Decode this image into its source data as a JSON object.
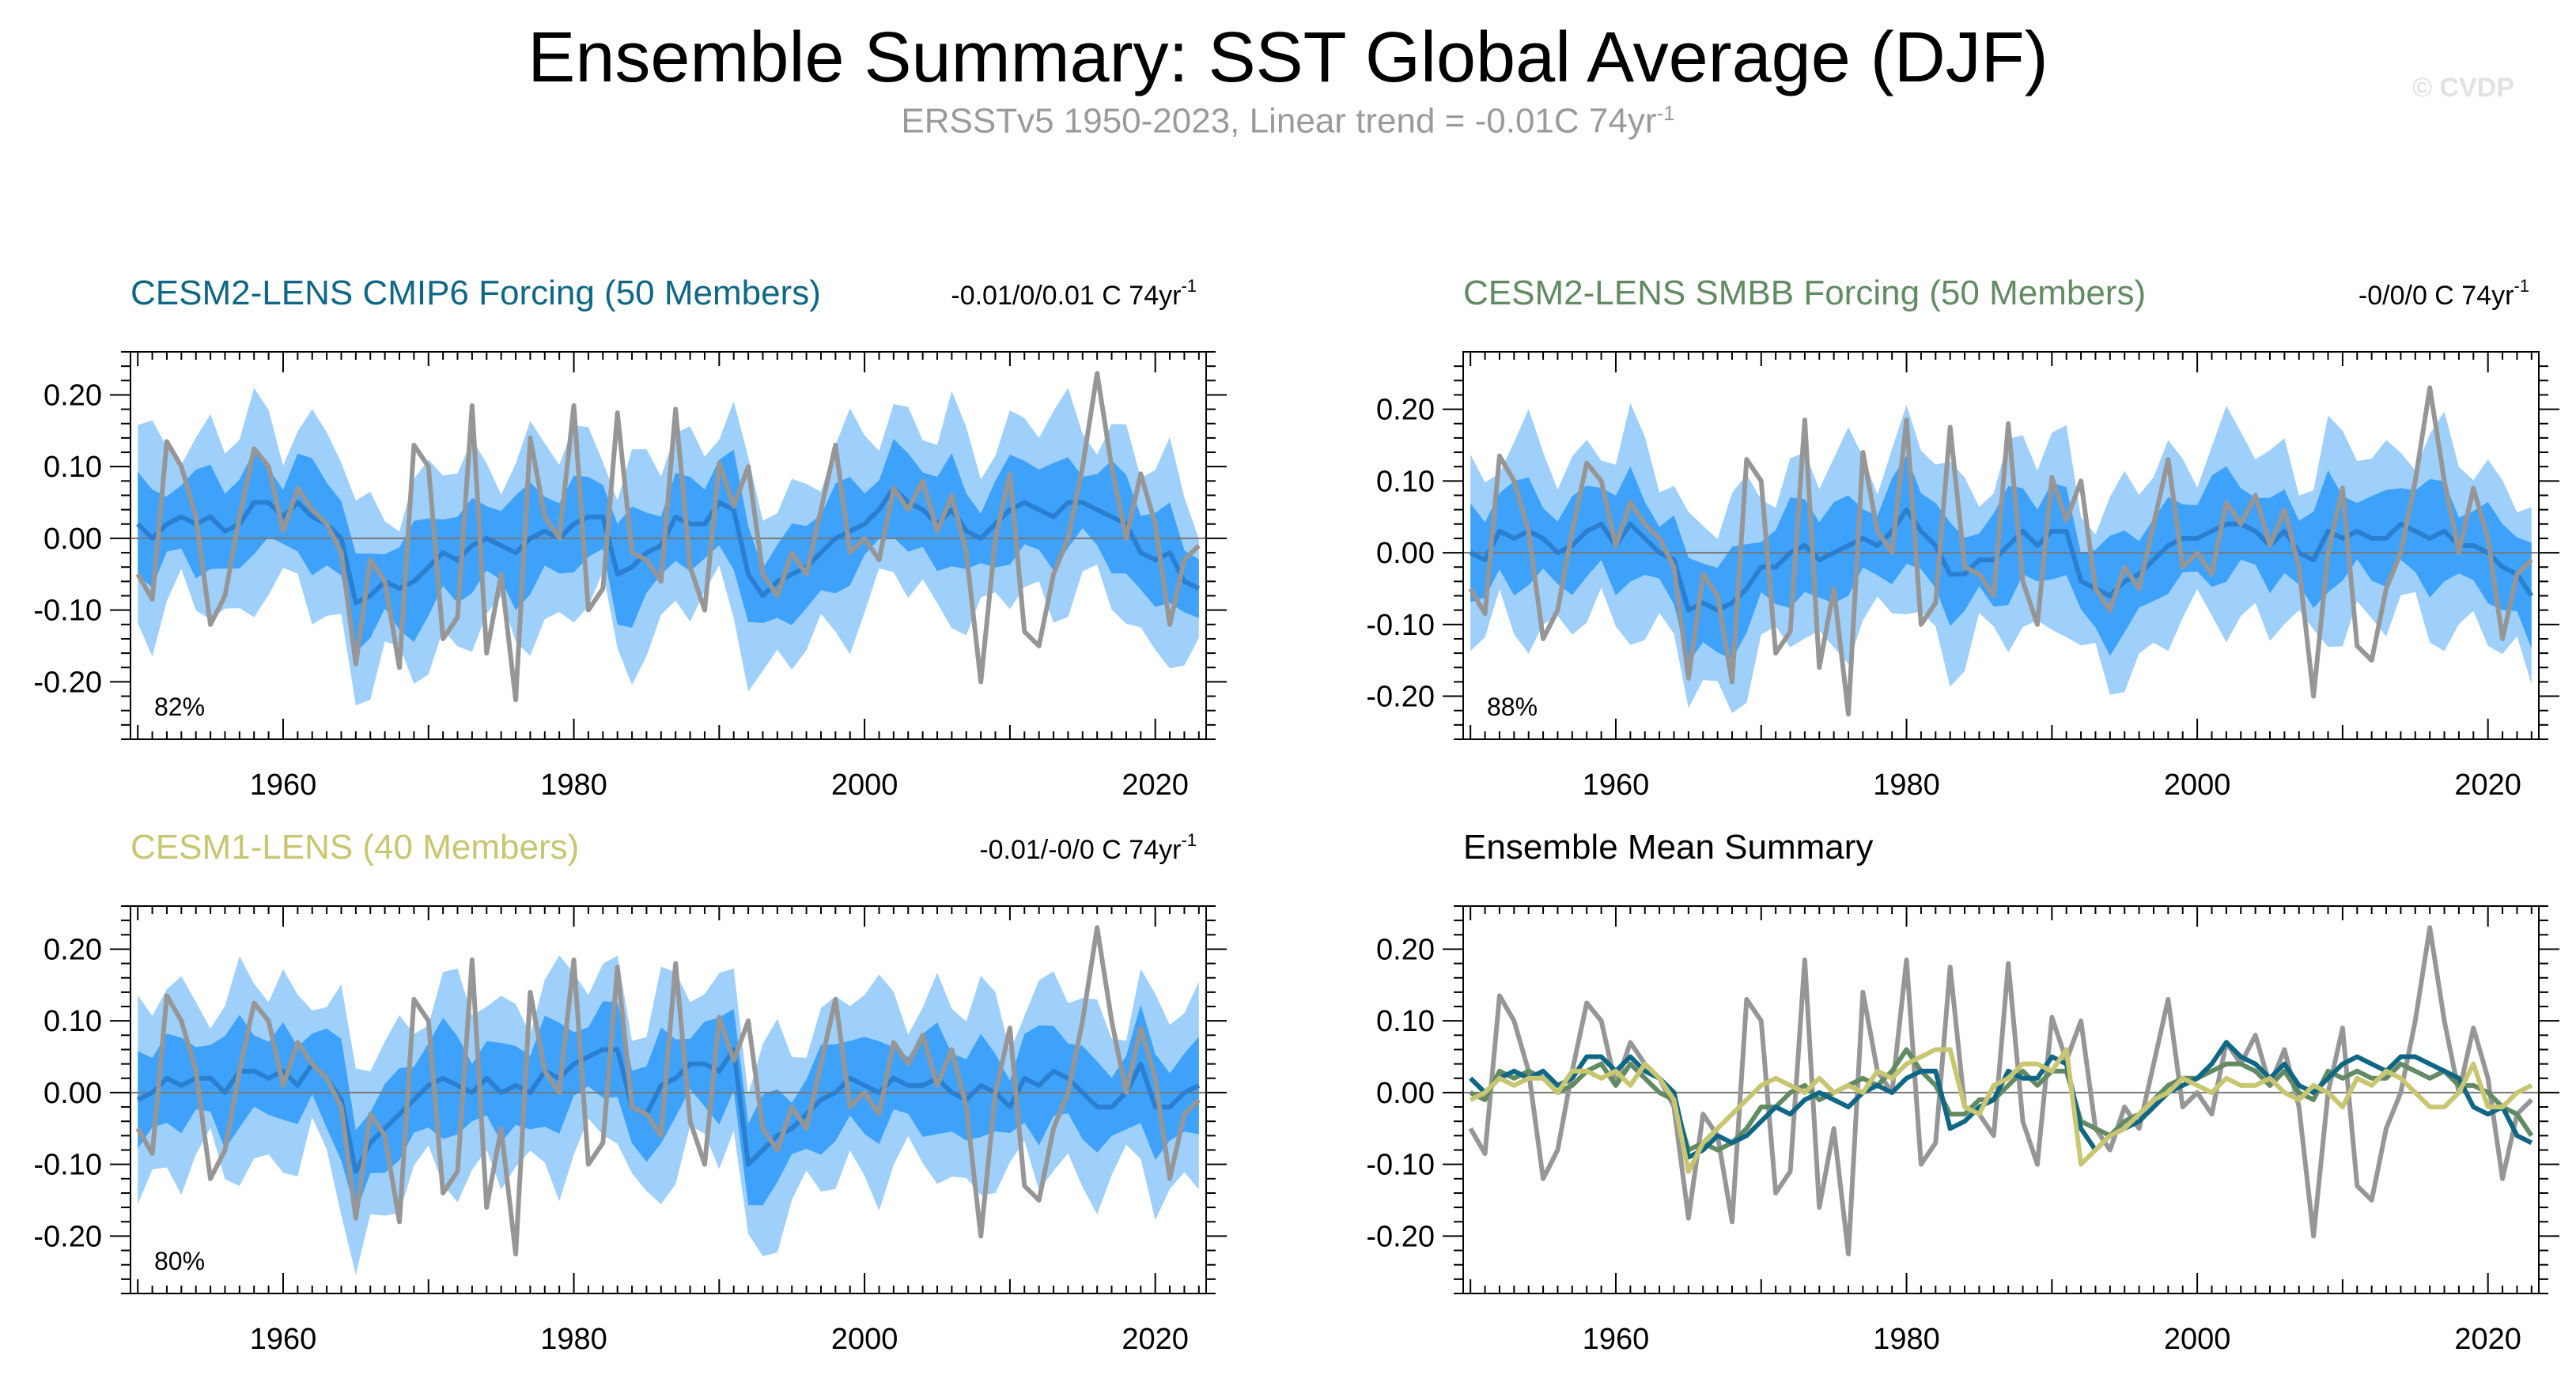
{
  "title": "Ensemble Summary: SST Global Average (DJF)",
  "subtitle_main": "ERSSTv5 1950-2023, Linear trend = -0.01C 74yr",
  "subtitle_sup": "-1",
  "watermark": "© CVDP",
  "colors": {
    "outer_band": "#9fd0fb",
    "inner_band": "#3fa2fa",
    "ensemble_mean": "#2a7fd0",
    "observations": "#969696",
    "cesm2_cmip6": "#0f6785",
    "cesm2_smbb": "#628a63",
    "cesm1": "#c8c670"
  },
  "observations": {
    "name": "ERSSTv5",
    "years": [
      1950,
      1951,
      1952,
      1953,
      1954,
      1955,
      1956,
      1957,
      1958,
      1959,
      1960,
      1961,
      1962,
      1963,
      1964,
      1965,
      1966,
      1967,
      1968,
      1969,
      1970,
      1971,
      1972,
      1973,
      1974,
      1975,
      1976,
      1977,
      1978,
      1979,
      1980,
      1981,
      1982,
      1983,
      1984,
      1985,
      1986,
      1987,
      1988,
      1989,
      1990,
      1991,
      1992,
      1993,
      1994,
      1995,
      1996,
      1997,
      1998,
      1999,
      2000,
      2001,
      2002,
      2003,
      2004,
      2005,
      2006,
      2007,
      2008,
      2009,
      2010,
      2011,
      2012,
      2013,
      2014,
      2015,
      2016,
      2017,
      2018,
      2019,
      2020,
      2021,
      2022,
      2023
    ],
    "values": [
      -0.05,
      -0.085,
      0.135,
      0.1,
      0.03,
      -0.12,
      -0.08,
      0.03,
      0.125,
      0.1,
      0.01,
      0.07,
      0.04,
      0.02,
      -0.02,
      -0.175,
      -0.03,
      -0.06,
      -0.18,
      0.13,
      0.1,
      -0.14,
      -0.11,
      0.185,
      -0.16,
      -0.05,
      -0.225,
      0.14,
      0.03,
      0.0,
      0.185,
      -0.1,
      -0.07,
      0.175,
      -0.02,
      -0.03,
      -0.06,
      0.18,
      -0.04,
      -0.1,
      0.105,
      0.045,
      0.1,
      -0.05,
      -0.08,
      -0.02,
      -0.05,
      0.04,
      0.13,
      -0.02,
      0.0,
      -0.03,
      0.07,
      0.04,
      0.08,
      0.01,
      0.06,
      -0.02,
      -0.2,
      0.0,
      0.09,
      -0.13,
      -0.15,
      -0.05,
      0.0,
      0.1,
      0.23,
      0.1,
      0.0,
      0.09,
      0.02,
      -0.12,
      -0.03,
      -0.01
    ]
  },
  "panels": [
    {
      "id": "cesm2-cmip6",
      "title": "CESM2-LENS CMIP6 Forcing (50 Members)",
      "trend_text": "-0.01/0/0.01 C 74yr",
      "trend_sup": "-1",
      "percent": "82%",
      "title_color": "#0f6785"
    },
    {
      "id": "cesm2-smbb",
      "title": "CESM2-LENS SMBB Forcing (50 Members)",
      "trend_text": "-0/0/0 C 74yr",
      "trend_sup": "-1",
      "percent": "88%",
      "title_color": "#628a63"
    },
    {
      "id": "cesm1",
      "title": "CESM1-LENS (40 Members)",
      "trend_text": "-0.01/-0/0 C 74yr",
      "trend_sup": "-1",
      "percent": "80%",
      "title_color": "#c8c670"
    },
    {
      "id": "ensemble-mean-summary",
      "title": "Ensemble Mean Summary",
      "title_color": "#000000"
    }
  ],
  "chart_data": [
    {
      "type": "area",
      "title": "CESM2-LENS CMIP6 Forcing (50 Members)",
      "xlim": [
        1949.5,
        2023.5
      ],
      "ylim": [
        -0.28,
        0.26
      ],
      "xticks": [
        "1960",
        "1980",
        "2000",
        "2020"
      ],
      "yticks": [
        "0.20",
        "0.10",
        "0.00",
        "-0.10",
        "-0.20"
      ],
      "x_start": 1950,
      "mean": [
        0.02,
        0.0,
        0.02,
        0.03,
        0.02,
        0.03,
        0.01,
        0.02,
        0.05,
        0.05,
        0.03,
        0.05,
        0.03,
        0.02,
        0.0,
        -0.09,
        -0.08,
        -0.06,
        -0.07,
        -0.06,
        -0.04,
        -0.02,
        -0.03,
        -0.01,
        0.0,
        -0.01,
        -0.02,
        0.0,
        0.01,
        0.0,
        0.02,
        0.03,
        0.03,
        -0.05,
        -0.04,
        -0.02,
        -0.01,
        0.03,
        0.02,
        0.02,
        0.05,
        0.04,
        -0.05,
        -0.08,
        -0.06,
        -0.05,
        -0.04,
        -0.02,
        0.0,
        0.01,
        0.02,
        0.04,
        0.07,
        0.05,
        0.04,
        0.02,
        0.04,
        0.01,
        0.0,
        0.02,
        0.04,
        0.05,
        0.04,
        0.03,
        0.05,
        0.05,
        0.04,
        0.03,
        0.02,
        -0.02,
        -0.03,
        -0.02,
        -0.06,
        -0.07
      ],
      "inner_spread": 0.06,
      "outer_spread": 0.12,
      "percent_label": "82%"
    },
    {
      "type": "area",
      "title": "CESM2-LENS SMBB Forcing (50 Members)",
      "xlim": [
        1949.5,
        2023.5
      ],
      "ylim": [
        -0.26,
        0.28
      ],
      "xticks": [
        "1960",
        "1980",
        "2000",
        "2020"
      ],
      "yticks": [
        "0.20",
        "0.10",
        "0.00",
        "-0.10",
        "-0.20"
      ],
      "x_start": 1950,
      "mean": [
        0.0,
        -0.01,
        0.03,
        0.02,
        0.03,
        0.02,
        0.0,
        0.01,
        0.03,
        0.04,
        0.01,
        0.04,
        0.02,
        0.0,
        -0.01,
        -0.08,
        -0.07,
        -0.08,
        -0.07,
        -0.05,
        -0.02,
        -0.02,
        0.0,
        0.01,
        -0.01,
        0.0,
        0.01,
        0.02,
        0.01,
        0.03,
        0.06,
        0.03,
        0.01,
        -0.03,
        -0.03,
        -0.01,
        -0.01,
        0.01,
        0.03,
        0.01,
        0.03,
        0.03,
        -0.04,
        -0.05,
        -0.06,
        -0.04,
        -0.03,
        -0.01,
        0.01,
        0.02,
        0.02,
        0.03,
        0.04,
        0.04,
        0.03,
        0.01,
        0.03,
        0.0,
        -0.01,
        0.03,
        0.02,
        0.03,
        0.02,
        0.02,
        0.04,
        0.03,
        0.02,
        0.03,
        0.01,
        0.01,
        0.0,
        -0.02,
        -0.03,
        -0.06
      ],
      "inner_spread": 0.06,
      "outer_spread": 0.12,
      "percent_label": "88%"
    },
    {
      "type": "area",
      "title": "CESM1-LENS (40 Members)",
      "xlim": [
        1949.5,
        2023.5
      ],
      "ylim": [
        -0.28,
        0.26
      ],
      "xticks": [
        "1960",
        "1980",
        "2000",
        "2020"
      ],
      "yticks": [
        "0.20",
        "0.10",
        "0.00",
        "-0.10",
        "-0.20"
      ],
      "x_start": 1950,
      "mean": [
        -0.01,
        0.0,
        0.02,
        0.01,
        0.02,
        0.02,
        0.0,
        0.03,
        0.03,
        0.02,
        0.03,
        0.01,
        0.04,
        0.02,
        -0.01,
        -0.11,
        -0.07,
        -0.05,
        -0.03,
        -0.01,
        0.01,
        0.02,
        0.01,
        0.0,
        0.02,
        0.0,
        0.01,
        0.0,
        0.03,
        0.02,
        0.04,
        0.05,
        0.06,
        0.06,
        -0.02,
        -0.03,
        0.01,
        0.02,
        0.04,
        0.04,
        0.03,
        0.06,
        -0.1,
        -0.08,
        -0.06,
        -0.05,
        -0.03,
        -0.01,
        0.0,
        0.02,
        0.01,
        0.0,
        0.02,
        0.01,
        0.01,
        0.02,
        0.0,
        -0.01,
        0.01,
        0.0,
        -0.02,
        0.02,
        0.01,
        0.03,
        0.02,
        0.0,
        -0.02,
        -0.02,
        0.0,
        0.04,
        -0.02,
        -0.02,
        0.0,
        0.01
      ],
      "inner_spread": 0.06,
      "outer_spread": 0.12,
      "percent_label": "80%"
    },
    {
      "type": "line",
      "title": "Ensemble Mean Summary",
      "xlim": [
        1949.5,
        2023.5
      ],
      "ylim": [
        -0.28,
        0.26
      ],
      "xticks": [
        "1960",
        "1980",
        "2000",
        "2020"
      ],
      "yticks": [
        "0.20",
        "0.10",
        "0.00",
        "-0.10",
        "-0.20"
      ],
      "series": [
        "observations",
        "cesm2-cmip6",
        "cesm2-smbb",
        "cesm1"
      ]
    }
  ]
}
